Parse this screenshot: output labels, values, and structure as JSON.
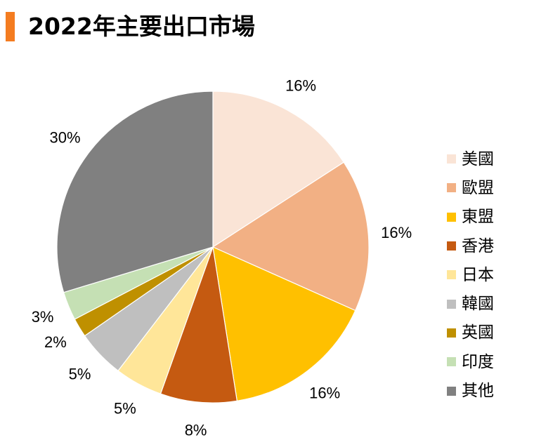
{
  "title": "2022年主要出口市場",
  "chart_data": {
    "type": "pie",
    "title": "2022年主要出口市場",
    "legend_position": "right",
    "slices": [
      {
        "label": "美國",
        "value": 16,
        "value_label": "16%",
        "color": "#fae4d6"
      },
      {
        "label": "歐盟",
        "value": 16,
        "value_label": "16%",
        "color": "#f2b084"
      },
      {
        "label": "東盟",
        "value": 16,
        "value_label": "16%",
        "color": "#ffc000"
      },
      {
        "label": "香港",
        "value": 8,
        "value_label": "8%",
        "color": "#c55a11"
      },
      {
        "label": "日本",
        "value": 5,
        "value_label": "5%",
        "color": "#ffe699"
      },
      {
        "label": "韓國",
        "value": 5,
        "value_label": "5%",
        "color": "#bfbfbf"
      },
      {
        "label": "英國",
        "value": 2,
        "value_label": "2%",
        "color": "#bf9000"
      },
      {
        "label": "印度",
        "value": 3,
        "value_label": "3%",
        "color": "#c5e0b4"
      },
      {
        "label": "其他",
        "value": 30,
        "value_label": "30%",
        "color": "#808080"
      }
    ]
  }
}
